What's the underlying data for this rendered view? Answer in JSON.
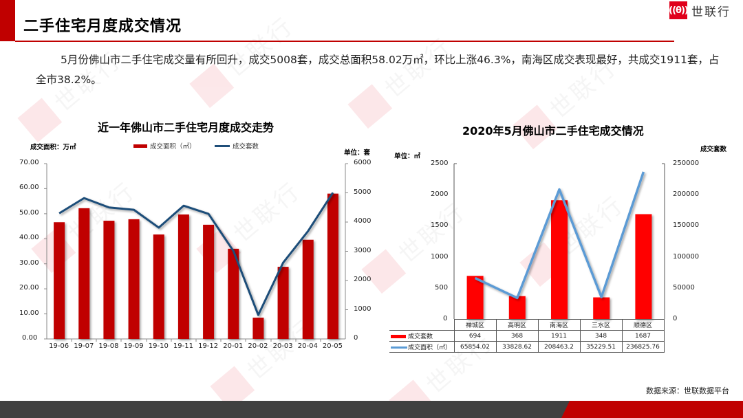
{
  "header": {
    "title": "二手住宅月度成交情况",
    "logo_mark": "((θ))",
    "logo_text": "世联行",
    "accent_color": "#c00000"
  },
  "summary": {
    "text": "5月份佛山市二手住宅成交量有所回升，成交5008套，成交总面积58.02万㎡，环比上涨46.3%，南海区成交表现最好，共成交1911套，占全市38.2%。"
  },
  "left_chart": {
    "title": "近一年佛山市二手住宅月度成交走势",
    "left_unit": "成交面积：万㎡",
    "right_unit": "单位：套",
    "legend": [
      {
        "label": "成交面积（㎡）",
        "color": "#c00000",
        "type": "bar"
      },
      {
        "label": "成交套数",
        "color": "#1f4e79",
        "type": "line"
      }
    ]
  },
  "right_chart": {
    "title": "2020年5月佛山市二手住宅成交情况",
    "left_unit": "单位：㎡",
    "right_unit": "成交套数",
    "legend": [
      {
        "label": "成交套数",
        "color": "#ff0000",
        "type": "bar"
      },
      {
        "label": "成交面积（㎡）",
        "color": "#5b9bd5",
        "type": "line"
      }
    ],
    "table": {
      "categories": [
        "禅城区",
        "高明区",
        "南海区",
        "三水区",
        "顺德区"
      ],
      "row1_label": "成交套数",
      "row1": [
        "694",
        "368",
        "1911",
        "348",
        "1687"
      ],
      "row2_label": "成交面积（㎡）",
      "row2": [
        "65854.02",
        "33828.62",
        "208463.2",
        "35229.51",
        "236825.76"
      ]
    }
  },
  "footer": {
    "source": "数据来源：世联数据平台"
  },
  "watermark": {
    "text": "世联行"
  },
  "chart_data": [
    {
      "type": "bar",
      "title": "近一年佛山市二手住宅月度成交走势",
      "categories": [
        "19-06",
        "19-07",
        "19-08",
        "19-09",
        "19-10",
        "19-11",
        "19-12",
        "20-01",
        "20-02",
        "20-03",
        "20-04",
        "20-05"
      ],
      "series": [
        {
          "name": "成交面积（㎡）",
          "type": "bar",
          "axis": "left",
          "color": "#c00000",
          "values": [
            46.6,
            52.2,
            47.2,
            47.8,
            41.7,
            49.7,
            45.6,
            36.0,
            8.5,
            28.8,
            39.6,
            58.02
          ]
        },
        {
          "name": "成交套数",
          "type": "line",
          "axis": "right",
          "color": "#1f4e79",
          "values": [
            4300,
            4820,
            4500,
            4420,
            3810,
            4560,
            4280,
            3010,
            820,
            2610,
            3690,
            5008
          ]
        }
      ],
      "ylabel": "成交面积：万㎡",
      "ylabel_right": "单位：套",
      "ylim": [
        0,
        70
      ],
      "yticks": [
        "0.00",
        "10.00",
        "20.00",
        "30.00",
        "40.00",
        "50.00",
        "60.00",
        "70.00"
      ],
      "ylim_right": [
        0,
        6000
      ],
      "yticks_right": [
        "0",
        "1000",
        "2000",
        "3000",
        "4000",
        "5000",
        "6000"
      ],
      "grid": false,
      "legend_position": "top"
    },
    {
      "type": "bar",
      "title": "2020年5月佛山市二手住宅成交情况",
      "categories": [
        "禅城区",
        "高明区",
        "南海区",
        "三水区",
        "顺德区"
      ],
      "series": [
        {
          "name": "成交套数",
          "type": "bar",
          "axis": "left",
          "color": "#ff0000",
          "values": [
            694,
            368,
            1911,
            348,
            1687
          ]
        },
        {
          "name": "成交面积（㎡）",
          "type": "line",
          "axis": "right",
          "color": "#5b9bd5",
          "values": [
            65854.02,
            33828.62,
            208463.2,
            35229.51,
            236825.76
          ]
        }
      ],
      "ylabel": "单位：㎡",
      "ylabel_right": "成交套数",
      "ylim": [
        0,
        2500
      ],
      "yticks": [
        "0",
        "500",
        "1000",
        "1500",
        "2000",
        "2500"
      ],
      "ylim_right": [
        0,
        250000
      ],
      "yticks_right": [
        "0",
        "50000",
        "100000",
        "150000",
        "200000",
        "250000"
      ],
      "grid": false,
      "legend_position": "data-table"
    }
  ]
}
